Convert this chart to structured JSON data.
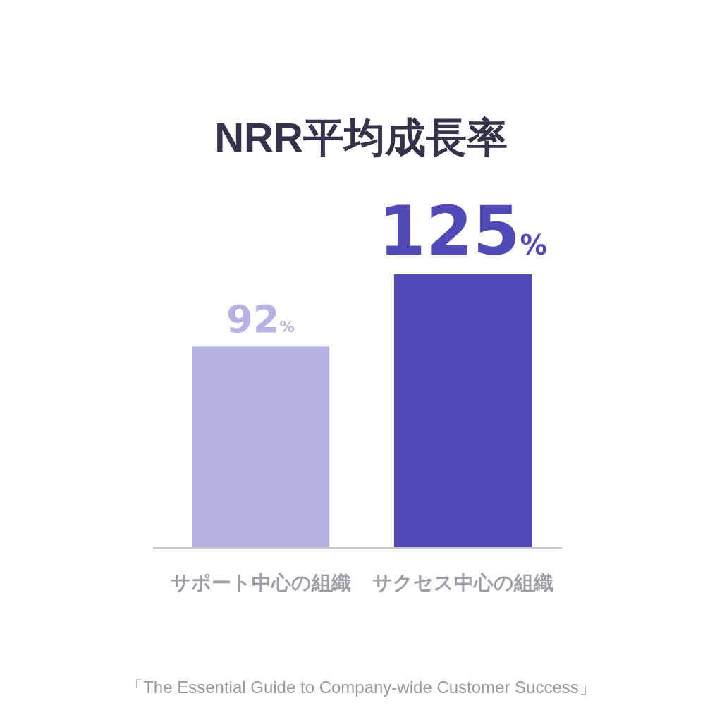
{
  "chart_data": {
    "type": "bar",
    "title": "NRR平均成長率",
    "categories": [
      "サポート中心の組織",
      "サクセス中心の組織"
    ],
    "values": [
      92,
      125
    ],
    "colors": [
      "#b6b2e3",
      "#5249b9"
    ],
    "value_labels": [
      "92%",
      "125%"
    ],
    "annotations": [
      "「The Essential Guide to Company-wide Customer Success」"
    ]
  }
}
